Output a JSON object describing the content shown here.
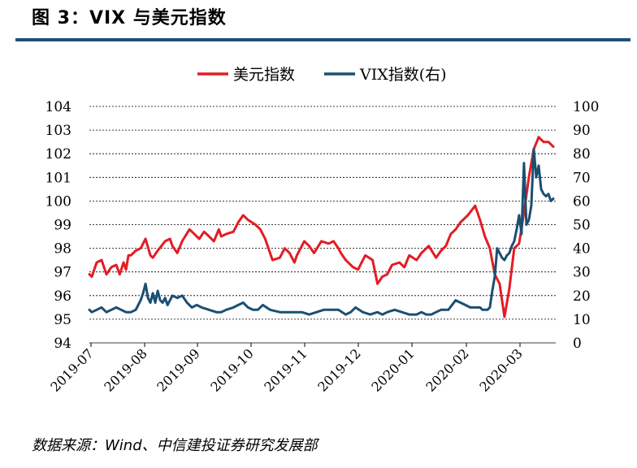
{
  "figure": {
    "title": "图 3：VIX 与美元指数",
    "source": "数据来源：Wind、中信建投证券研究发展部"
  },
  "colors": {
    "usd": "#e31c23",
    "vix": "#1b4f72",
    "grid": "#000000",
    "title_rule": "#1f4e79"
  },
  "chart_data": {
    "type": "line",
    "title": "",
    "legend": {
      "position": "top",
      "entries": [
        "美元指数",
        "VIX指数(右)"
      ]
    },
    "x_ticks": [
      "2019-07",
      "2019-08",
      "2019-09",
      "2019-10",
      "2019-11",
      "2019-12",
      "2020-01",
      "2020-02",
      "2020-03"
    ],
    "x_range": [
      0,
      9.55
    ],
    "y_left": {
      "label": "",
      "range": [
        94,
        104
      ],
      "ticks": [
        94,
        95,
        96,
        97,
        98,
        99,
        100,
        101,
        102,
        103,
        104
      ]
    },
    "y_right": {
      "label": "",
      "range": [
        0,
        100
      ],
      "ticks": [
        0,
        10,
        20,
        30,
        40,
        50,
        60,
        70,
        80,
        90,
        100
      ]
    },
    "grid": "horizontal dashed",
    "series": [
      {
        "name": "美元指数",
        "axis": "left",
        "x": [
          0.0,
          0.05,
          0.15,
          0.25,
          0.35,
          0.45,
          0.55,
          0.62,
          0.7,
          0.75,
          0.8,
          0.85,
          0.95,
          1.05,
          1.15,
          1.25,
          1.3,
          1.4,
          1.55,
          1.65,
          1.7,
          1.8,
          1.9,
          2.05,
          2.15,
          2.25,
          2.35,
          2.45,
          2.55,
          2.65,
          2.7,
          2.8,
          2.95,
          3.05,
          3.15,
          3.25,
          3.4,
          3.5,
          3.6,
          3.75,
          3.9,
          4.0,
          4.1,
          4.2,
          4.25,
          4.4,
          4.5,
          4.6,
          4.75,
          4.9,
          5.0,
          5.1,
          5.15,
          5.25,
          5.4,
          5.5,
          5.65,
          5.8,
          5.9,
          6.0,
          6.1,
          6.2,
          6.35,
          6.45,
          6.55,
          6.7,
          6.8,
          6.95,
          7.1,
          7.2,
          7.3,
          7.4,
          7.5,
          7.6,
          7.75,
          7.9,
          8.0,
          8.1,
          8.2,
          8.3,
          8.4,
          8.5,
          8.6,
          8.7,
          8.8,
          8.9,
          9.0,
          9.1,
          9.2,
          9.3,
          9.4,
          9.5
        ],
        "values": [
          96.9,
          96.8,
          97.4,
          97.5,
          96.9,
          97.2,
          97.3,
          96.9,
          97.4,
          97.1,
          97.7,
          97.7,
          97.9,
          98.0,
          98.4,
          97.7,
          97.6,
          97.9,
          98.3,
          98.4,
          98.1,
          97.8,
          98.3,
          98.8,
          98.6,
          98.4,
          98.7,
          98.5,
          98.3,
          98.8,
          98.5,
          98.6,
          98.7,
          99.1,
          99.4,
          99.2,
          99.0,
          98.8,
          98.4,
          97.5,
          97.6,
          98.0,
          97.8,
          97.4,
          97.7,
          98.3,
          98.1,
          97.8,
          98.3,
          98.2,
          98.3,
          98.0,
          97.8,
          97.5,
          97.2,
          97.1,
          97.7,
          97.5,
          96.5,
          96.8,
          96.9,
          97.3,
          97.4,
          97.2,
          97.7,
          97.5,
          97.8,
          98.1,
          97.6,
          97.9,
          98.1,
          98.6,
          98.8,
          99.1,
          99.4,
          99.8,
          99.2,
          98.5,
          98.0,
          96.9,
          96.5,
          95.1,
          96.3,
          98.0,
          98.2,
          99.5,
          101.0,
          102.2,
          102.7,
          102.5,
          102.5,
          102.3
        ]
      },
      {
        "name": "VIX指数(右)",
        "axis": "right",
        "x": [
          0.0,
          0.05,
          0.15,
          0.25,
          0.35,
          0.45,
          0.55,
          0.65,
          0.75,
          0.85,
          0.95,
          1.05,
          1.1,
          1.15,
          1.2,
          1.25,
          1.3,
          1.35,
          1.4,
          1.45,
          1.5,
          1.55,
          1.6,
          1.7,
          1.8,
          1.9,
          2.0,
          2.1,
          2.2,
          2.3,
          2.45,
          2.6,
          2.7,
          2.8,
          2.95,
          3.05,
          3.15,
          3.25,
          3.35,
          3.45,
          3.55,
          3.7,
          3.9,
          4.05,
          4.2,
          4.35,
          4.5,
          4.65,
          4.8,
          4.95,
          5.1,
          5.25,
          5.35,
          5.45,
          5.6,
          5.75,
          5.9,
          6.0,
          6.1,
          6.25,
          6.4,
          6.55,
          6.7,
          6.8,
          6.9,
          7.0,
          7.1,
          7.2,
          7.35,
          7.5,
          7.6,
          7.7,
          7.8,
          7.9,
          8.0,
          8.05,
          8.1,
          8.15,
          8.2,
          8.25,
          8.3,
          8.35,
          8.4,
          8.45,
          8.5,
          8.55,
          8.6,
          8.65,
          8.7,
          8.75,
          8.8,
          8.85,
          8.9,
          8.95,
          9.0,
          9.05,
          9.1,
          9.15,
          9.2,
          9.25,
          9.3,
          9.35,
          9.4,
          9.45,
          9.5
        ],
        "values": [
          14,
          13,
          14,
          15,
          13,
          14,
          15,
          14,
          13,
          13,
          14,
          18,
          21,
          25,
          19,
          17,
          21,
          17,
          22,
          18,
          17,
          19,
          16,
          20,
          19,
          20,
          17,
          15,
          16,
          15,
          14,
          13,
          13,
          14,
          15,
          16,
          17,
          15,
          14,
          14,
          16,
          14,
          13,
          13,
          13,
          13,
          12,
          13,
          14,
          14,
          14,
          12,
          13,
          15,
          13,
          12,
          13,
          12,
          13,
          14,
          13,
          12,
          12,
          13,
          12,
          12,
          13,
          14,
          14,
          18,
          17,
          16,
          15,
          15,
          15,
          14,
          14,
          14,
          15,
          22,
          28,
          40,
          38,
          36,
          35,
          37,
          38,
          41,
          43,
          48,
          54,
          46,
          76,
          50,
          52,
          58,
          82,
          70,
          75,
          65,
          63,
          62,
          63,
          60,
          61
        ]
      }
    ]
  }
}
